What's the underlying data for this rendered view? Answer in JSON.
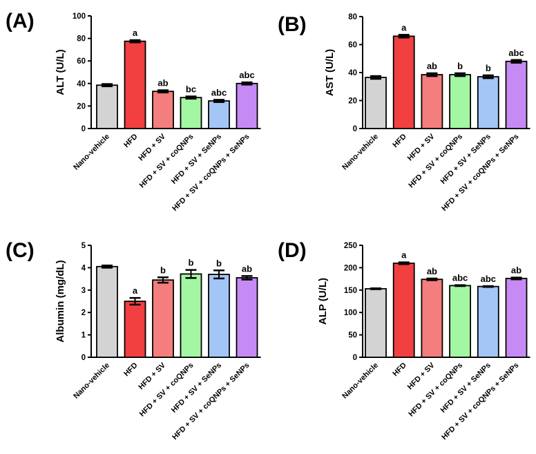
{
  "chart_data": [
    {
      "type": "bar",
      "panel": "(A)",
      "ylabel": "ALT (U/L)",
      "ylim": [
        0,
        100
      ],
      "yticks": [
        0,
        20,
        40,
        60,
        80,
        100
      ],
      "categories": [
        "Nano-vehicle",
        "HFD",
        "HFD + SV",
        "HFD + SV + coQNPs",
        "HFD + SV + SeNPs",
        "HFD + SV + coQNPs + SeNPs"
      ],
      "values": [
        38.5,
        77.5,
        33,
        27.5,
        24.5,
        40
      ],
      "errors": [
        1,
        1,
        1,
        1,
        1,
        1
      ],
      "significance": [
        "",
        "a",
        "ab",
        "bc",
        "abc",
        "abc"
      ],
      "colors": [
        "#d3d3d3",
        "#f24040",
        "#f47d7d",
        "#a3f7a3",
        "#a3c6f7",
        "#c68af4"
      ]
    },
    {
      "type": "bar",
      "panel": "(B)",
      "ylabel": "AST (U/L)",
      "ylim": [
        0,
        80
      ],
      "yticks": [
        0,
        20,
        40,
        60,
        80
      ],
      "categories": [
        "Nano-vehicle",
        "HFD",
        "HFD + SV",
        "HFD + SV + coQNPs",
        "HFD + SV + SeNPs",
        "HFD + SV + coQNPs + SeNPs"
      ],
      "values": [
        36.5,
        66,
        38.5,
        38.5,
        37,
        48
      ],
      "errors": [
        1,
        1,
        1,
        1,
        1,
        1
      ],
      "significance": [
        "",
        "a",
        "ab",
        "b",
        "b",
        "abc"
      ],
      "colors": [
        "#d3d3d3",
        "#f24040",
        "#f47d7d",
        "#a3f7a3",
        "#a3c6f7",
        "#c68af4"
      ]
    },
    {
      "type": "bar",
      "panel": "(C)",
      "ylabel": "Albumin (mg/dL)",
      "ylim": [
        0,
        5
      ],
      "yticks": [
        0,
        1,
        2,
        3,
        4,
        5
      ],
      "categories": [
        "Nano-vehicle",
        "HFD",
        "HFD + SV",
        "HFD + SV + coQNPs",
        "HFD + SV + SeNPs",
        "HFD + SV + coQNPs + SeNPs"
      ],
      "values": [
        4.05,
        2.5,
        3.45,
        3.72,
        3.7,
        3.55
      ],
      "errors": [
        0.05,
        0.15,
        0.12,
        0.18,
        0.18,
        0.08
      ],
      "significance": [
        "",
        "a",
        "b",
        "b",
        "b",
        "ab"
      ],
      "colors": [
        "#d3d3d3",
        "#f24040",
        "#f47d7d",
        "#a3f7a3",
        "#a3c6f7",
        "#c68af4"
      ]
    },
    {
      "type": "bar",
      "panel": "(D)",
      "ylabel": "ALP (U/L)",
      "ylim": [
        0,
        250
      ],
      "yticks": [
        0,
        50,
        100,
        150,
        200,
        250
      ],
      "categories": [
        "Nano-vehicle",
        "HFD",
        "HFD + SV",
        "HFD + SV + coQNPs",
        "HFD + SV + SeNPs",
        "HFD + SV + coQNPs + SeNPs"
      ],
      "values": [
        153,
        210,
        174,
        160,
        158,
        176
      ],
      "errors": [
        1,
        2,
        2,
        1,
        1,
        2
      ],
      "significance": [
        "",
        "a",
        "ab",
        "abc",
        "abc",
        "ab"
      ],
      "colors": [
        "#d3d3d3",
        "#f24040",
        "#f47d7d",
        "#a3f7a3",
        "#a3c6f7",
        "#c68af4"
      ]
    }
  ]
}
